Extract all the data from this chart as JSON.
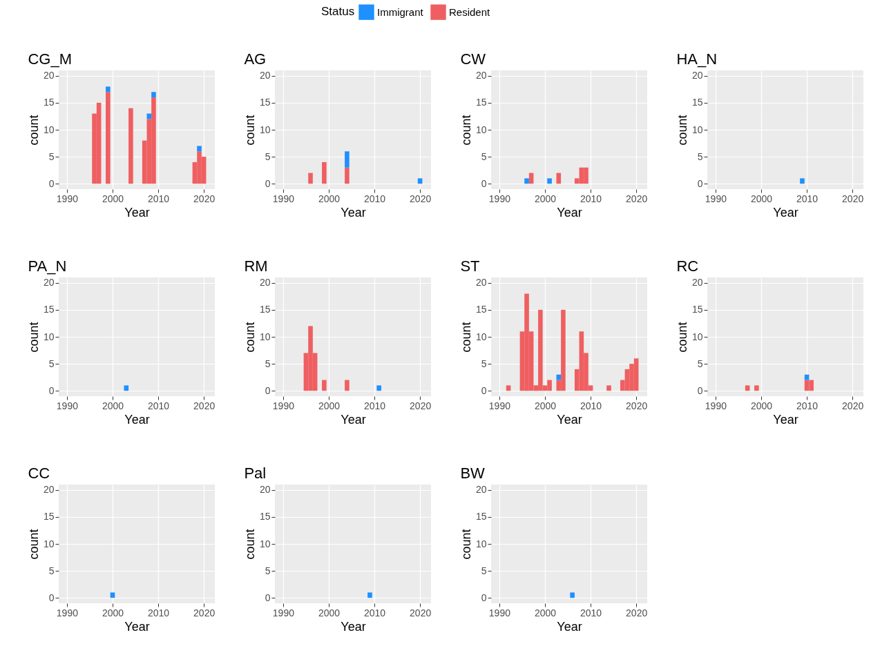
{
  "chart_data": [
    {
      "type": "bar",
      "title": "CG_M",
      "xlabel": "Year",
      "ylabel": "count",
      "legend_title": "Status",
      "legend": "top",
      "stacked": true,
      "grid": true,
      "xlim": [
        1988.2,
        2022.4
      ],
      "xticks": [
        1990,
        2000,
        2010,
        2020
      ],
      "ylim": [
        -1,
        21
      ],
      "yticks": [
        0,
        5,
        10,
        15,
        20
      ],
      "x": [
        1996,
        1997,
        1999,
        2004,
        2007,
        2008,
        2009,
        2018,
        2019,
        2020
      ],
      "series": [
        {
          "name": "Resident",
          "color": "#ef5f61",
          "values": [
            13,
            15,
            17,
            14,
            8,
            12,
            16,
            4,
            6,
            5
          ]
        },
        {
          "name": "Immigrant",
          "color": "#1e90ff",
          "values": [
            null,
            null,
            1,
            null,
            null,
            1,
            1,
            null,
            1,
            null
          ]
        }
      ]
    },
    {
      "type": "bar",
      "title": "AG",
      "xlabel": "Year",
      "ylabel": "count",
      "stacked": true,
      "grid": true,
      "xlim": [
        1988.2,
        2022.4
      ],
      "xticks": [
        1990,
        2000,
        2010,
        2020
      ],
      "ylim": [
        -1,
        21
      ],
      "yticks": [
        0,
        5,
        10,
        15,
        20
      ],
      "x": [
        1996,
        1999,
        2004,
        2020
      ],
      "series": [
        {
          "name": "Resident",
          "color": "#ef5f61",
          "values": [
            2,
            4,
            3,
            null
          ]
        },
        {
          "name": "Immigrant",
          "color": "#1e90ff",
          "values": [
            null,
            null,
            3,
            1
          ]
        }
      ]
    },
    {
      "type": "bar",
      "title": "CW",
      "xlabel": "Year",
      "ylabel": "count",
      "stacked": true,
      "grid": true,
      "xlim": [
        1988.2,
        2022.4
      ],
      "xticks": [
        1990,
        2000,
        2010,
        2020
      ],
      "ylim": [
        -1,
        21
      ],
      "yticks": [
        0,
        5,
        10,
        15,
        20
      ],
      "x": [
        1996,
        1997,
        2001,
        2003,
        2007,
        2008,
        2009
      ],
      "series": [
        {
          "name": "Resident",
          "color": "#ef5f61",
          "values": [
            null,
            2,
            null,
            2,
            1,
            3,
            3
          ]
        },
        {
          "name": "Immigrant",
          "color": "#1e90ff",
          "values": [
            1,
            null,
            1,
            null,
            null,
            null,
            null
          ]
        }
      ]
    },
    {
      "type": "bar",
      "title": "HA_N",
      "xlabel": "Year",
      "ylabel": "count",
      "stacked": true,
      "grid": true,
      "xlim": [
        1988.2,
        2022.4
      ],
      "xticks": [
        1990,
        2000,
        2010,
        2020
      ],
      "ylim": [
        -1,
        21
      ],
      "yticks": [
        0,
        5,
        10,
        15,
        20
      ],
      "x": [
        2009
      ],
      "series": [
        {
          "name": "Resident",
          "color": "#ef5f61",
          "values": [
            null
          ]
        },
        {
          "name": "Immigrant",
          "color": "#1e90ff",
          "values": [
            1
          ]
        }
      ]
    },
    {
      "type": "bar",
      "title": "PA_N",
      "xlabel": "Year",
      "ylabel": "count",
      "stacked": true,
      "grid": true,
      "xlim": [
        1988.2,
        2022.4
      ],
      "xticks": [
        1990,
        2000,
        2010,
        2020
      ],
      "ylim": [
        -1,
        21
      ],
      "yticks": [
        0,
        5,
        10,
        15,
        20
      ],
      "x": [
        2003
      ],
      "series": [
        {
          "name": "Resident",
          "color": "#ef5f61",
          "values": [
            null
          ]
        },
        {
          "name": "Immigrant",
          "color": "#1e90ff",
          "values": [
            1
          ]
        }
      ]
    },
    {
      "type": "bar",
      "title": "RM",
      "xlabel": "Year",
      "ylabel": "count",
      "stacked": true,
      "grid": true,
      "xlim": [
        1988.2,
        2022.4
      ],
      "xticks": [
        1990,
        2000,
        2010,
        2020
      ],
      "ylim": [
        -1,
        21
      ],
      "yticks": [
        0,
        5,
        10,
        15,
        20
      ],
      "x": [
        1995,
        1996,
        1997,
        1999,
        2004,
        2011
      ],
      "series": [
        {
          "name": "Resident",
          "color": "#ef5f61",
          "values": [
            7,
            12,
            7,
            2,
            2,
            null
          ]
        },
        {
          "name": "Immigrant",
          "color": "#1e90ff",
          "values": [
            null,
            null,
            null,
            null,
            null,
            1
          ]
        }
      ]
    },
    {
      "type": "bar",
      "title": "ST",
      "xlabel": "Year",
      "ylabel": "count",
      "stacked": true,
      "grid": true,
      "xlim": [
        1988.2,
        2022.4
      ],
      "xticks": [
        1990,
        2000,
        2010,
        2020
      ],
      "ylim": [
        -1,
        21
      ],
      "yticks": [
        0,
        5,
        10,
        15,
        20
      ],
      "x": [
        1992,
        1995,
        1996,
        1997,
        1998,
        1999,
        2000,
        2001,
        2003,
        2004,
        2007,
        2008,
        2009,
        2010,
        2014,
        2017,
        2018,
        2019,
        2020
      ],
      "series": [
        {
          "name": "Resident",
          "color": "#ef5f61",
          "values": [
            1,
            11,
            18,
            11,
            1,
            15,
            1,
            2,
            2,
            15,
            4,
            11,
            7,
            1,
            1,
            2,
            4,
            5,
            6
          ]
        },
        {
          "name": "Immigrant",
          "color": "#1e90ff",
          "values": [
            null,
            null,
            null,
            null,
            null,
            null,
            null,
            null,
            1,
            null,
            null,
            null,
            null,
            null,
            null,
            null,
            null,
            null,
            null
          ]
        }
      ]
    },
    {
      "type": "bar",
      "title": "RC",
      "xlabel": "Year",
      "ylabel": "count",
      "stacked": true,
      "grid": true,
      "xlim": [
        1988.2,
        2022.4
      ],
      "xticks": [
        1990,
        2000,
        2010,
        2020
      ],
      "ylim": [
        -1,
        21
      ],
      "yticks": [
        0,
        5,
        10,
        15,
        20
      ],
      "x": [
        1997,
        1999,
        2010,
        2011
      ],
      "series": [
        {
          "name": "Resident",
          "color": "#ef5f61",
          "values": [
            1,
            1,
            2,
            2
          ]
        },
        {
          "name": "Immigrant",
          "color": "#1e90ff",
          "values": [
            null,
            null,
            1,
            null
          ]
        }
      ]
    },
    {
      "type": "bar",
      "title": "CC",
      "xlabel": "Year",
      "ylabel": "count",
      "stacked": true,
      "grid": true,
      "xlim": [
        1988.2,
        2022.4
      ],
      "xticks": [
        1990,
        2000,
        2010,
        2020
      ],
      "ylim": [
        -1,
        21
      ],
      "yticks": [
        0,
        5,
        10,
        15,
        20
      ],
      "x": [
        2000
      ],
      "series": [
        {
          "name": "Resident",
          "color": "#ef5f61",
          "values": [
            null
          ]
        },
        {
          "name": "Immigrant",
          "color": "#1e90ff",
          "values": [
            1
          ]
        }
      ]
    },
    {
      "type": "bar",
      "title": "Pal",
      "xlabel": "Year",
      "ylabel": "count",
      "stacked": true,
      "grid": true,
      "xlim": [
        1988.2,
        2022.4
      ],
      "xticks": [
        1990,
        2000,
        2010,
        2020
      ],
      "ylim": [
        -1,
        21
      ],
      "yticks": [
        0,
        5,
        10,
        15,
        20
      ],
      "x": [
        2009
      ],
      "series": [
        {
          "name": "Resident",
          "color": "#ef5f61",
          "values": [
            null
          ]
        },
        {
          "name": "Immigrant",
          "color": "#1e90ff",
          "values": [
            1
          ]
        }
      ]
    },
    {
      "type": "bar",
      "title": "BW",
      "xlabel": "Year",
      "ylabel": "count",
      "stacked": true,
      "grid": true,
      "xlim": [
        1988.2,
        2022.4
      ],
      "xticks": [
        1990,
        2000,
        2010,
        2020
      ],
      "ylim": [
        -1,
        21
      ],
      "yticks": [
        0,
        5,
        10,
        15,
        20
      ],
      "x": [
        2006
      ],
      "series": [
        {
          "name": "Resident",
          "color": "#ef5f61",
          "values": [
            null
          ]
        },
        {
          "name": "Immigrant",
          "color": "#1e90ff",
          "values": [
            1
          ]
        }
      ]
    }
  ]
}
